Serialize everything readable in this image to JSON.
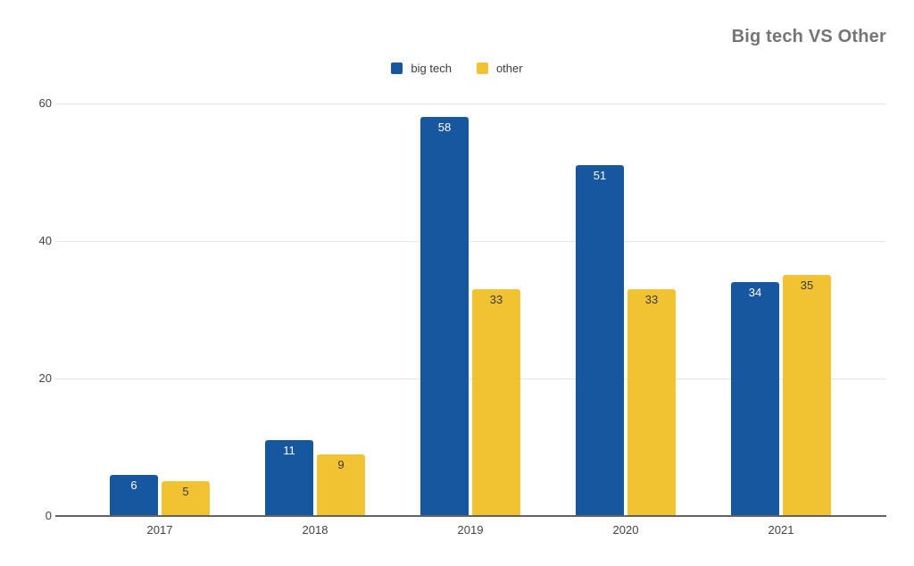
{
  "chart_data": {
    "type": "bar",
    "title": "Big tech VS Other",
    "xlabel": "",
    "ylabel": "",
    "categories": [
      "2017",
      "2018",
      "2019",
      "2020",
      "2021"
    ],
    "series": [
      {
        "name": "big tech",
        "values": [
          6,
          11,
          58,
          51,
          34
        ],
        "color": "#1657A0",
        "value_label_color": "#ffffff"
      },
      {
        "name": "other",
        "values": [
          5,
          9,
          33,
          33,
          35
        ],
        "color": "#F1C232",
        "value_label_color": "#3b3b3b"
      }
    ],
    "ylim": [
      0,
      60
    ],
    "yticks": [
      0,
      20,
      40,
      60
    ],
    "grid": true,
    "legend_position": "top-center"
  },
  "styles": {
    "title_color": "#757575",
    "axis_line_color": "#636363",
    "grid_color": "#e6e6e6",
    "tick_label_color": "#424242",
    "legend_text_color": "#3c3c3c",
    "background": "#ffffff"
  }
}
